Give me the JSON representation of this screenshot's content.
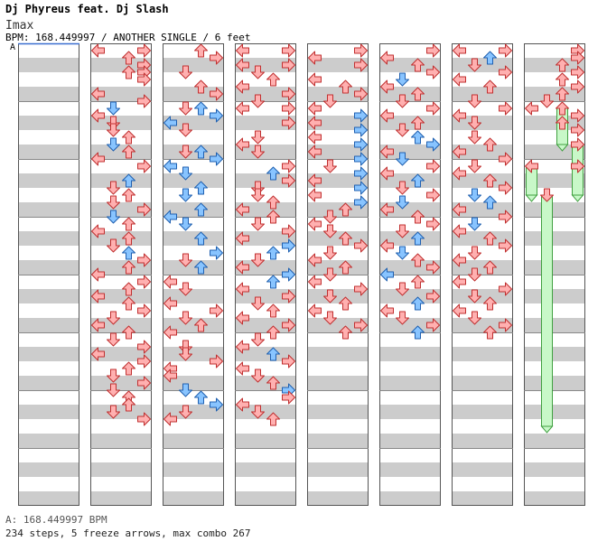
{
  "header": {
    "artist": "Dj Phyreus feat. Dj Slash",
    "title": "Imax",
    "info": "BPM: 168.449997 / ANOTHER SINGLE / 6 feet",
    "bpm_marker": "A"
  },
  "footer": {
    "bpm_line": "A: 168.449997 BPM",
    "stats": "234 steps, 5 freeze arrows, max combo 267"
  },
  "colors": {
    "page_bg": "#ffffff",
    "stripe_gray": "#cccccc",
    "stripe_white": "#ffffff",
    "column_border": "#555555",
    "arrow_red_fill": "#ffb0b0",
    "arrow_red_stroke": "#c03030",
    "arrow_blue_fill": "#88c4ff",
    "arrow_blue_stroke": "#2060b0",
    "freeze_fill": "#c8f8c8",
    "freeze_stroke": "#40a040",
    "bpm_line": "#3a6fd0"
  },
  "chart_data": {
    "type": "stepchart",
    "lanes": [
      "left",
      "down",
      "up",
      "right"
    ],
    "columns": 8,
    "measures_per_column": 8,
    "first_measure_offset": 5,
    "notes": [
      [
        1,
        0,
        0,
        "r"
      ],
      [
        1,
        0,
        3,
        "r"
      ],
      [
        1,
        1,
        2,
        "r"
      ],
      [
        1,
        2,
        3,
        "r"
      ],
      [
        1,
        3,
        2,
        "r"
      ],
      [
        1,
        3,
        3,
        "r"
      ],
      [
        1,
        4,
        3,
        "r"
      ],
      [
        1,
        6,
        0,
        "r"
      ],
      [
        1,
        7,
        3,
        "r"
      ],
      [
        1,
        8,
        1,
        "b"
      ],
      [
        1,
        9,
        0,
        "r"
      ],
      [
        1,
        10,
        1,
        "r"
      ],
      [
        1,
        11,
        1,
        "r"
      ],
      [
        1,
        12,
        2,
        "r"
      ],
      [
        1,
        13,
        1,
        "b"
      ],
      [
        1,
        14,
        2,
        "r"
      ],
      [
        1,
        15,
        0,
        "r"
      ],
      [
        1,
        16,
        3,
        "r"
      ],
      [
        1,
        18,
        2,
        "b"
      ],
      [
        1,
        19,
        1,
        "r"
      ],
      [
        1,
        20,
        2,
        "r"
      ],
      [
        1,
        21,
        1,
        "r"
      ],
      [
        1,
        22,
        3,
        "r"
      ],
      [
        1,
        23,
        1,
        "b"
      ],
      [
        1,
        24,
        2,
        "r"
      ],
      [
        1,
        25,
        0,
        "r"
      ],
      [
        1,
        26,
        2,
        "r"
      ],
      [
        1,
        27,
        1,
        "r"
      ],
      [
        1,
        28,
        2,
        "b"
      ],
      [
        1,
        29,
        3,
        "r"
      ],
      [
        1,
        30,
        2,
        "r"
      ],
      [
        1,
        31,
        0,
        "r"
      ],
      [
        1,
        32,
        3,
        "r"
      ],
      [
        1,
        33,
        2,
        "r"
      ],
      [
        1,
        34,
        0,
        "r"
      ],
      [
        1,
        35,
        2,
        "r"
      ],
      [
        1,
        36,
        3,
        "r"
      ],
      [
        1,
        37,
        1,
        "r"
      ],
      [
        1,
        38,
        0,
        "r"
      ],
      [
        1,
        39,
        2,
        "r"
      ],
      [
        1,
        40,
        1,
        "r"
      ],
      [
        1,
        41,
        3,
        "r"
      ],
      [
        1,
        42,
        0,
        "r"
      ],
      [
        1,
        43,
        3,
        "r"
      ],
      [
        1,
        44,
        2,
        "r"
      ],
      [
        1,
        45,
        1,
        "r"
      ],
      [
        1,
        46,
        3,
        "r"
      ],
      [
        1,
        47,
        1,
        "r"
      ],
      [
        1,
        48,
        2,
        "r"
      ],
      [
        1,
        49,
        2,
        "r"
      ],
      [
        1,
        50,
        1,
        "r"
      ],
      [
        1,
        51,
        3,
        "r"
      ],
      [
        2,
        0,
        2,
        "r"
      ],
      [
        2,
        1,
        3,
        "r"
      ],
      [
        2,
        3,
        1,
        "r"
      ],
      [
        2,
        5,
        2,
        "r"
      ],
      [
        2,
        6,
        3,
        "r"
      ],
      [
        2,
        8,
        1,
        "r"
      ],
      [
        2,
        8,
        2,
        "b"
      ],
      [
        2,
        9,
        3,
        "b"
      ],
      [
        2,
        10,
        0,
        "b"
      ],
      [
        2,
        11,
        1,
        "r"
      ],
      [
        2,
        14,
        1,
        "r"
      ],
      [
        2,
        14,
        2,
        "b"
      ],
      [
        2,
        15,
        3,
        "b"
      ],
      [
        2,
        16,
        0,
        "b"
      ],
      [
        2,
        17,
        1,
        "b"
      ],
      [
        2,
        19,
        2,
        "b"
      ],
      [
        2,
        20,
        1,
        "b"
      ],
      [
        2,
        22,
        2,
        "b"
      ],
      [
        2,
        23,
        0,
        "b"
      ],
      [
        2,
        24,
        1,
        "b"
      ],
      [
        2,
        26,
        2,
        "b"
      ],
      [
        2,
        28,
        3,
        "b"
      ],
      [
        2,
        29,
        1,
        "r"
      ],
      [
        2,
        30,
        2,
        "b"
      ],
      [
        2,
        32,
        0,
        "r"
      ],
      [
        2,
        33,
        1,
        "r"
      ],
      [
        2,
        35,
        0,
        "r"
      ],
      [
        2,
        36,
        3,
        "r"
      ],
      [
        2,
        37,
        1,
        "r"
      ],
      [
        2,
        38,
        2,
        "r"
      ],
      [
        2,
        39,
        0,
        "r"
      ],
      [
        2,
        41,
        1,
        "r"
      ],
      [
        2,
        42,
        1,
        "r"
      ],
      [
        2,
        43,
        3,
        "r"
      ],
      [
        2,
        44,
        0,
        "r"
      ],
      [
        2,
        45,
        0,
        "r"
      ],
      [
        2,
        47,
        1,
        "b"
      ],
      [
        2,
        48,
        2,
        "b"
      ],
      [
        2,
        49,
        3,
        "b"
      ],
      [
        2,
        50,
        1,
        "r"
      ],
      [
        2,
        51,
        0,
        "r"
      ],
      [
        3,
        0,
        0,
        "r"
      ],
      [
        3,
        0,
        3,
        "r"
      ],
      [
        3,
        2,
        0,
        "r"
      ],
      [
        3,
        2,
        3,
        "r"
      ],
      [
        3,
        3,
        1,
        "r"
      ],
      [
        3,
        4,
        2,
        "r"
      ],
      [
        3,
        5,
        0,
        "r"
      ],
      [
        3,
        6,
        3,
        "r"
      ],
      [
        3,
        7,
        1,
        "r"
      ],
      [
        3,
        8,
        0,
        "r"
      ],
      [
        3,
        8,
        3,
        "r"
      ],
      [
        3,
        10,
        3,
        "r"
      ],
      [
        3,
        12,
        1,
        "r"
      ],
      [
        3,
        13,
        0,
        "r"
      ],
      [
        3,
        14,
        1,
        "r"
      ],
      [
        3,
        16,
        3,
        "r"
      ],
      [
        3,
        17,
        2,
        "b"
      ],
      [
        3,
        18,
        3,
        "r"
      ],
      [
        3,
        19,
        1,
        "r"
      ],
      [
        3,
        20,
        1,
        "r"
      ],
      [
        3,
        21,
        2,
        "r"
      ],
      [
        3,
        22,
        0,
        "r"
      ],
      [
        3,
        23,
        2,
        "r"
      ],
      [
        3,
        24,
        1,
        "r"
      ],
      [
        3,
        25,
        3,
        "r"
      ],
      [
        3,
        26,
        0,
        "r"
      ],
      [
        3,
        27,
        3,
        "b"
      ],
      [
        3,
        28,
        2,
        "b"
      ],
      [
        3,
        29,
        1,
        "r"
      ],
      [
        3,
        30,
        0,
        "r"
      ],
      [
        3,
        31,
        3,
        "b"
      ],
      [
        3,
        32,
        2,
        "b"
      ],
      [
        3,
        33,
        0,
        "r"
      ],
      [
        3,
        34,
        3,
        "r"
      ],
      [
        3,
        35,
        1,
        "r"
      ],
      [
        3,
        36,
        2,
        "r"
      ],
      [
        3,
        37,
        0,
        "r"
      ],
      [
        3,
        38,
        3,
        "r"
      ],
      [
        3,
        39,
        2,
        "r"
      ],
      [
        3,
        40,
        1,
        "r"
      ],
      [
        3,
        41,
        0,
        "r"
      ],
      [
        3,
        42,
        2,
        "b"
      ],
      [
        3,
        43,
        3,
        "r"
      ],
      [
        3,
        44,
        0,
        "r"
      ],
      [
        3,
        45,
        1,
        "r"
      ],
      [
        3,
        46,
        2,
        "r"
      ],
      [
        3,
        47,
        3,
        "b"
      ],
      [
        3,
        48,
        3,
        "r"
      ],
      [
        3,
        49,
        0,
        "r"
      ],
      [
        3,
        50,
        1,
        "r"
      ],
      [
        3,
        51,
        2,
        "r"
      ],
      [
        4,
        0,
        3,
        "r"
      ],
      [
        4,
        1,
        0,
        "r"
      ],
      [
        4,
        2,
        3,
        "r"
      ],
      [
        4,
        4,
        0,
        "r"
      ],
      [
        4,
        5,
        2,
        "r"
      ],
      [
        4,
        6,
        3,
        "r"
      ],
      [
        4,
        7,
        1,
        "r"
      ],
      [
        4,
        8,
        0,
        "r"
      ],
      [
        4,
        9,
        3,
        "b"
      ],
      [
        4,
        10,
        0,
        "r"
      ],
      [
        4,
        11,
        3,
        "b"
      ],
      [
        4,
        12,
        0,
        "r"
      ],
      [
        4,
        13,
        3,
        "b"
      ],
      [
        4,
        14,
        0,
        "r"
      ],
      [
        4,
        15,
        3,
        "b"
      ],
      [
        4,
        16,
        1,
        "r"
      ],
      [
        4,
        17,
        3,
        "b"
      ],
      [
        4,
        18,
        0,
        "r"
      ],
      [
        4,
        19,
        3,
        "b"
      ],
      [
        4,
        20,
        0,
        "r"
      ],
      [
        4,
        21,
        3,
        "b"
      ],
      [
        4,
        22,
        2,
        "r"
      ],
      [
        4,
        23,
        1,
        "r"
      ],
      [
        4,
        24,
        0,
        "r"
      ],
      [
        4,
        25,
        1,
        "r"
      ],
      [
        4,
        26,
        2,
        "r"
      ],
      [
        4,
        27,
        3,
        "r"
      ],
      [
        4,
        28,
        1,
        "r"
      ],
      [
        4,
        29,
        0,
        "r"
      ],
      [
        4,
        30,
        2,
        "r"
      ],
      [
        4,
        31,
        1,
        "r"
      ],
      [
        4,
        32,
        0,
        "r"
      ],
      [
        4,
        33,
        3,
        "r"
      ],
      [
        4,
        34,
        1,
        "r"
      ],
      [
        4,
        35,
        2,
        "r"
      ],
      [
        4,
        36,
        0,
        "r"
      ],
      [
        4,
        37,
        1,
        "r"
      ],
      [
        4,
        38,
        3,
        "r"
      ],
      [
        4,
        39,
        2,
        "r"
      ],
      [
        5,
        0,
        3,
        "r"
      ],
      [
        5,
        1,
        0,
        "r"
      ],
      [
        5,
        2,
        2,
        "r"
      ],
      [
        5,
        3,
        3,
        "r"
      ],
      [
        5,
        4,
        1,
        "b"
      ],
      [
        5,
        5,
        0,
        "r"
      ],
      [
        5,
        6,
        2,
        "r"
      ],
      [
        5,
        7,
        1,
        "r"
      ],
      [
        5,
        8,
        3,
        "r"
      ],
      [
        5,
        9,
        0,
        "r"
      ],
      [
        5,
        10,
        2,
        "r"
      ],
      [
        5,
        11,
        1,
        "r"
      ],
      [
        5,
        12,
        2,
        "b"
      ],
      [
        5,
        13,
        3,
        "b"
      ],
      [
        5,
        14,
        0,
        "r"
      ],
      [
        5,
        15,
        1,
        "b"
      ],
      [
        5,
        16,
        3,
        "r"
      ],
      [
        5,
        17,
        0,
        "r"
      ],
      [
        5,
        18,
        2,
        "b"
      ],
      [
        5,
        19,
        1,
        "r"
      ],
      [
        5,
        20,
        3,
        "r"
      ],
      [
        5,
        21,
        1,
        "b"
      ],
      [
        5,
        22,
        0,
        "r"
      ],
      [
        5,
        23,
        2,
        "r"
      ],
      [
        5,
        24,
        3,
        "r"
      ],
      [
        5,
        25,
        1,
        "r"
      ],
      [
        5,
        26,
        2,
        "b"
      ],
      [
        5,
        27,
        0,
        "r"
      ],
      [
        5,
        28,
        1,
        "b"
      ],
      [
        5,
        29,
        2,
        "r"
      ],
      [
        5,
        30,
        3,
        "r"
      ],
      [
        5,
        31,
        0,
        "b"
      ],
      [
        5,
        32,
        2,
        "r"
      ],
      [
        5,
        33,
        1,
        "r"
      ],
      [
        5,
        34,
        3,
        "r"
      ],
      [
        5,
        35,
        2,
        "b"
      ],
      [
        5,
        36,
        0,
        "r"
      ],
      [
        5,
        37,
        1,
        "r"
      ],
      [
        5,
        38,
        3,
        "r"
      ],
      [
        5,
        39,
        2,
        "b"
      ],
      [
        6,
        0,
        0,
        "r"
      ],
      [
        6,
        0,
        3,
        "r"
      ],
      [
        6,
        1,
        2,
        "b"
      ],
      [
        6,
        2,
        1,
        "r"
      ],
      [
        6,
        3,
        3,
        "r"
      ],
      [
        6,
        4,
        0,
        "r"
      ],
      [
        6,
        5,
        2,
        "r"
      ],
      [
        6,
        7,
        1,
        "r"
      ],
      [
        6,
        8,
        3,
        "r"
      ],
      [
        6,
        9,
        0,
        "r"
      ],
      [
        6,
        10,
        1,
        "r"
      ],
      [
        6,
        12,
        1,
        "r"
      ],
      [
        6,
        13,
        2,
        "r"
      ],
      [
        6,
        14,
        0,
        "r"
      ],
      [
        6,
        15,
        3,
        "r"
      ],
      [
        6,
        16,
        1,
        "r"
      ],
      [
        6,
        17,
        0,
        "r"
      ],
      [
        6,
        18,
        2,
        "r"
      ],
      [
        6,
        19,
        3,
        "r"
      ],
      [
        6,
        20,
        1,
        "b"
      ],
      [
        6,
        21,
        2,
        "b"
      ],
      [
        6,
        22,
        0,
        "r"
      ],
      [
        6,
        23,
        3,
        "r"
      ],
      [
        6,
        24,
        1,
        "b"
      ],
      [
        6,
        25,
        0,
        "r"
      ],
      [
        6,
        26,
        2,
        "r"
      ],
      [
        6,
        27,
        3,
        "r"
      ],
      [
        6,
        28,
        1,
        "r"
      ],
      [
        6,
        29,
        0,
        "r"
      ],
      [
        6,
        30,
        2,
        "r"
      ],
      [
        6,
        31,
        1,
        "r"
      ],
      [
        6,
        32,
        0,
        "r"
      ],
      [
        6,
        33,
        3,
        "r"
      ],
      [
        6,
        34,
        1,
        "r"
      ],
      [
        6,
        35,
        2,
        "r"
      ],
      [
        6,
        36,
        0,
        "r"
      ],
      [
        6,
        37,
        1,
        "r"
      ],
      [
        6,
        38,
        3,
        "r"
      ],
      [
        6,
        39,
        2,
        "r"
      ],
      [
        7,
        0,
        3,
        "r"
      ],
      [
        7,
        1,
        3,
        "r"
      ],
      [
        7,
        2,
        2,
        "r"
      ],
      [
        7,
        3,
        3,
        "r"
      ],
      [
        7,
        4,
        2,
        "r"
      ],
      [
        7,
        5,
        3,
        "r"
      ],
      [
        7,
        6,
        2,
        "r"
      ],
      [
        7,
        7,
        1,
        "r"
      ],
      [
        7,
        8,
        0,
        "r"
      ],
      [
        7,
        9,
        3,
        "r"
      ],
      [
        7,
        10,
        2,
        "r"
      ],
      [
        7,
        11,
        3,
        "r"
      ]
    ],
    "freezes": [
      [
        7,
        8,
        2,
        13
      ],
      [
        7,
        13,
        3,
        16
      ],
      [
        7,
        16,
        0,
        20
      ],
      [
        7,
        16,
        3,
        20
      ],
      [
        7,
        20,
        1,
        52
      ]
    ]
  }
}
